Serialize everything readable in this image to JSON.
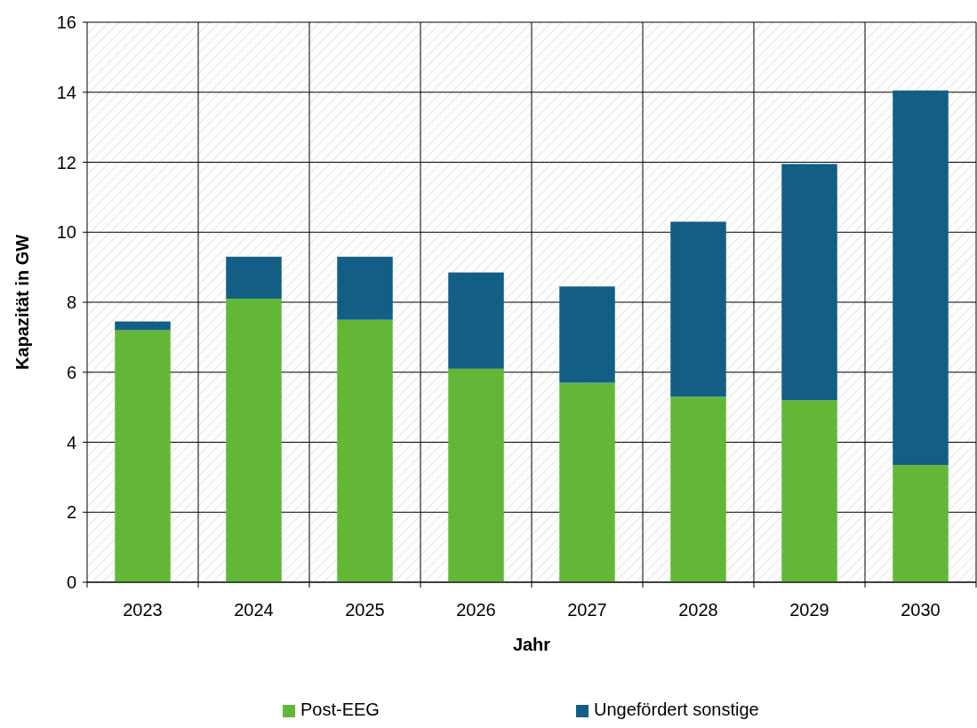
{
  "chart_data": {
    "type": "bar",
    "stacked": true,
    "xlabel": "Jahr",
    "ylabel": "Kapazität in GW",
    "categories": [
      "2023",
      "2024",
      "2025",
      "2026",
      "2027",
      "2028",
      "2029",
      "2030"
    ],
    "series": [
      {
        "name": "Post-EEG",
        "color": "#62b836",
        "values": [
          7.2,
          8.1,
          7.5,
          6.1,
          5.7,
          5.3,
          5.2,
          3.35
        ]
      },
      {
        "name": "Ungefördert sonstige",
        "color": "#135e85",
        "values": [
          0.25,
          1.2,
          1.8,
          2.75,
          2.75,
          5.0,
          6.75,
          10.7
        ]
      }
    ],
    "ylim": [
      0,
      16
    ],
    "yticks": [
      0,
      2,
      4,
      6,
      8,
      10,
      12,
      14,
      16
    ],
    "grid": true,
    "legend": "bottom"
  }
}
